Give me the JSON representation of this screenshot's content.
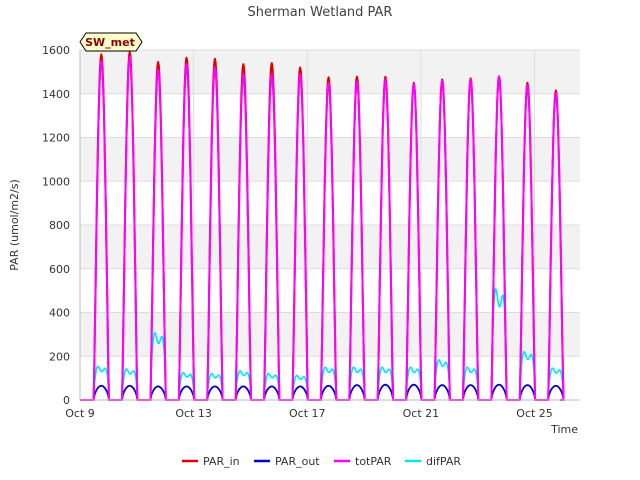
{
  "chart_data": {
    "type": "line",
    "title": "Sherman Wetland PAR",
    "badge": "SW_met",
    "xlabel": "Time",
    "ylabel": "PAR (umol/m2/s)",
    "xlim": [
      9,
      26.6
    ],
    "ylim": [
      0,
      1600
    ],
    "x_ticks": [
      {
        "value": 9,
        "label": "Oct 9"
      },
      {
        "value": 13,
        "label": "Oct 13"
      },
      {
        "value": 17,
        "label": "Oct 17"
      },
      {
        "value": 21,
        "label": "Oct 21"
      },
      {
        "value": 25,
        "label": "Oct 25"
      }
    ],
    "y_ticks": [
      0,
      200,
      400,
      600,
      800,
      1000,
      1200,
      1400,
      1600
    ],
    "grid": true,
    "legend_position": "bottom-center",
    "series_x_unit": "day of October",
    "daily_peaks": {
      "days": [
        9.75,
        10.75,
        11.75,
        12.75,
        13.75,
        14.75,
        15.75,
        16.75,
        17.75,
        18.75,
        19.75,
        20.75,
        21.75,
        22.75,
        23.75,
        24.75,
        25.75
      ],
      "PAR_in": [
        1580,
        1590,
        1545,
        1565,
        1560,
        1535,
        1540,
        1520,
        1475,
        1478,
        1478,
        1450,
        1465,
        1470,
        1480,
        1450,
        1415
      ],
      "PAR_out": [
        65,
        65,
        62,
        62,
        62,
        62,
        62,
        62,
        65,
        68,
        70,
        70,
        68,
        68,
        70,
        68,
        65
      ],
      "totPAR": [
        1550,
        1570,
        1510,
        1535,
        1520,
        1490,
        1490,
        1490,
        1450,
        1455,
        1465,
        1445,
        1460,
        1465,
        1480,
        1440,
        1405
      ],
      "difPAR": [
        185,
        170,
        370,
        150,
        145,
        160,
        145,
        135,
        180,
        180,
        180,
        180,
        220,
        180,
        610,
        265,
        175
      ]
    },
    "series": [
      {
        "name": "PAR_in",
        "color": "#e00000"
      },
      {
        "name": "PAR_out",
        "color": "#0000cc"
      },
      {
        "name": "totPAR",
        "color": "#ff00ff"
      },
      {
        "name": "difPAR",
        "color": "#00e5ff"
      }
    ]
  }
}
